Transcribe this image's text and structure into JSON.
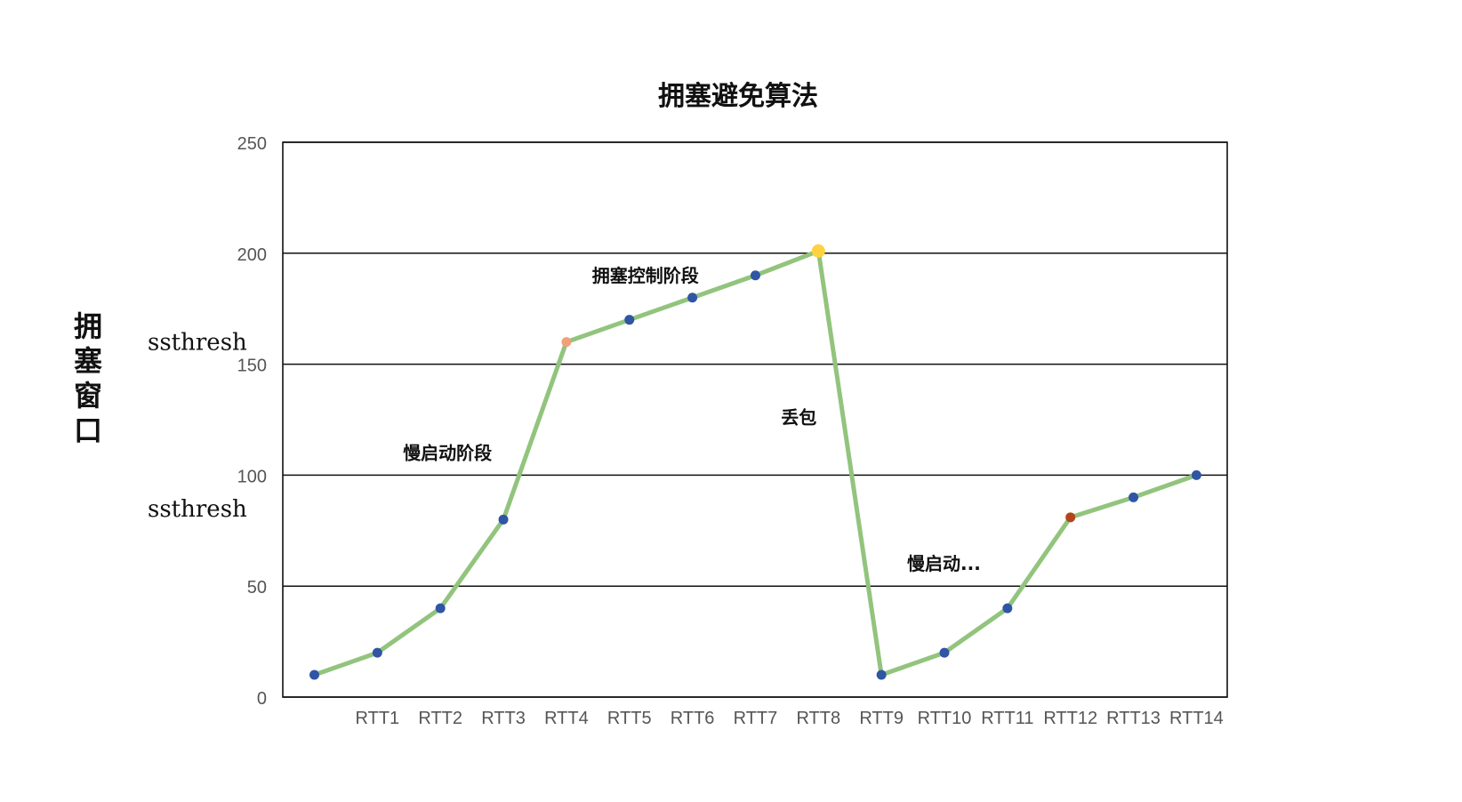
{
  "chart_data": {
    "type": "line",
    "title": "拥塞避免算法",
    "ylabel": "拥塞窗口",
    "xlabel": "",
    "ylim": [
      0,
      250
    ],
    "yticks": [
      0,
      50,
      100,
      150,
      200,
      250
    ],
    "grid": true,
    "categories": [
      "",
      "RTT1",
      "RTT2",
      "RTT3",
      "RTT4",
      "RTT5",
      "RTT6",
      "RTT7",
      "RTT8",
      "RTT9",
      "RTT10",
      "RTT11",
      "RTT12",
      "RTT13",
      "RTT14"
    ],
    "series": [
      {
        "values": [
          10,
          20,
          40,
          80,
          160,
          170,
          180,
          190,
          201,
          10,
          20,
          40,
          81,
          90,
          100
        ],
        "line_color": "#92c47d",
        "marker_color": "#3055a4",
        "highlight_points": [
          {
            "index": 4,
            "color": "#f0a07a"
          },
          {
            "index": 8,
            "color": "#ffd23f"
          },
          {
            "index": 12,
            "color": "#b2451c"
          }
        ]
      }
    ],
    "annotations": [
      {
        "text": "ssthresh",
        "anchor_value": 160
      },
      {
        "text": "ssthresh",
        "anchor_value": 85
      },
      {
        "text": "慢启动阶段",
        "x_category": "RTT2",
        "y_value": 110
      },
      {
        "text": "拥塞控制阶段",
        "x_category": "RTT5",
        "y_value": 190
      },
      {
        "text": "丢包",
        "x_category": "RTT8",
        "y_value": 126
      },
      {
        "text": "慢启动...",
        "x_category": "RTT10",
        "y_value": 60
      }
    ]
  }
}
